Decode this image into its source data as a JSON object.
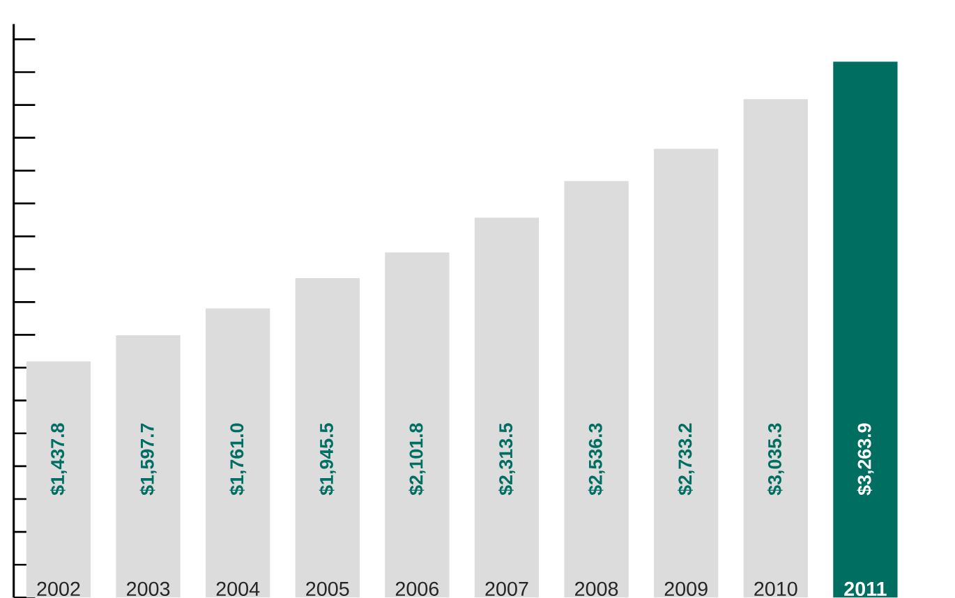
{
  "chart_data": {
    "type": "bar",
    "categories": [
      "2002",
      "2003",
      "2004",
      "2005",
      "2006",
      "2007",
      "2008",
      "2009",
      "2010",
      "2011"
    ],
    "values": [
      1437.8,
      1597.7,
      1761.0,
      1945.5,
      2101.8,
      2313.5,
      2536.3,
      2733.2,
      3035.3,
      3263.9
    ],
    "value_labels": [
      "$1,437.8",
      "$1,597.7",
      "$1,761.0",
      "$1,945.5",
      "$2,101.8",
      "$2,313.5",
      "$2,536.3",
      "$2,733.2",
      "$3,035.3",
      "$3,263.9"
    ],
    "colors": [
      "#dcdcdd",
      "#dcdcdd",
      "#dcdcdd",
      "#dcdcdd",
      "#dcdcdd",
      "#dcdcdd",
      "#dcdcdd",
      "#dcdcdd",
      "#dcdcdd",
      "#006f62"
    ],
    "tick_labels": "x"
  }
}
